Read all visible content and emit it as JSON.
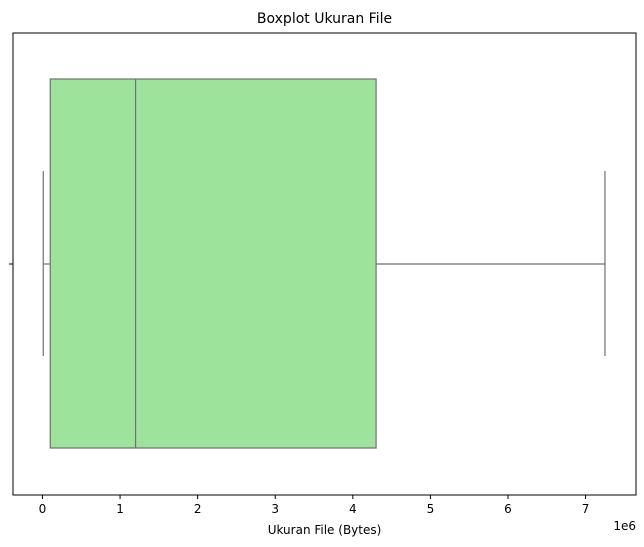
{
  "chart_data": {
    "type": "boxplot",
    "title": "Boxplot Ukuran File",
    "xlabel": "Ukuran File (Bytes)",
    "ylabel": "",
    "x_offset_label": "1e6",
    "xlim": [
      -0.38,
      7.65
    ],
    "x_ticks": [
      0,
      1,
      2,
      3,
      4,
      5,
      6,
      7
    ],
    "x_tick_labels": [
      "0",
      "1",
      "2",
      "3",
      "4",
      "5",
      "6",
      "7"
    ],
    "grid": false,
    "box": {
      "whisker_low": 0.01,
      "q1": 0.1,
      "median": 1.2,
      "q3": 4.3,
      "whisker_high": 7.25,
      "box_color": "#9de39b",
      "line_color": "#707070"
    }
  }
}
